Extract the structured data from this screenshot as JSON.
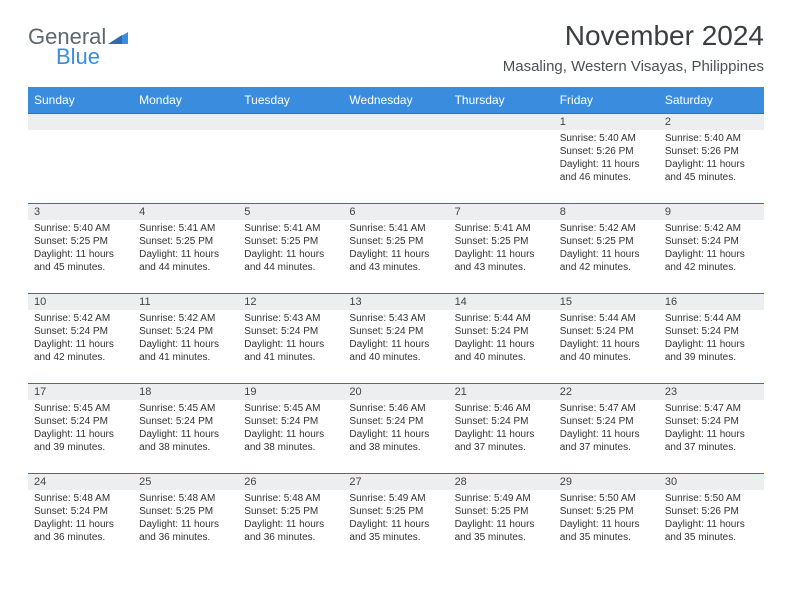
{
  "logo": {
    "general": "General",
    "blue": "Blue"
  },
  "title": "November 2024",
  "subtitle": "Masaling, Western Visayas, Philippines",
  "colors": {
    "header_bg": "#3a8dde",
    "header_text": "#ffffff",
    "daynum_bg": "#eceeef",
    "daynum_border": "#3a6ea5",
    "title_color": "#3a3f44",
    "subtitle_color": "#4a5056",
    "text_color": "#333333",
    "logo_gray": "#5c6770",
    "logo_blue": "#3a8dde",
    "background": "#ffffff"
  },
  "typography": {
    "title_fontsize": 28,
    "subtitle_fontsize": 15,
    "dow_fontsize": 12,
    "daynum_fontsize": 11,
    "info_fontsize": 10
  },
  "dow": [
    "Sunday",
    "Monday",
    "Tuesday",
    "Wednesday",
    "Thursday",
    "Friday",
    "Saturday"
  ],
  "weeks": [
    [
      {
        "day": "",
        "sunrise": "",
        "sunset": "",
        "daylight": "",
        "empty": true
      },
      {
        "day": "",
        "sunrise": "",
        "sunset": "",
        "daylight": "",
        "empty": true
      },
      {
        "day": "",
        "sunrise": "",
        "sunset": "",
        "daylight": "",
        "empty": true
      },
      {
        "day": "",
        "sunrise": "",
        "sunset": "",
        "daylight": "",
        "empty": true
      },
      {
        "day": "",
        "sunrise": "",
        "sunset": "",
        "daylight": "",
        "empty": true
      },
      {
        "day": "1",
        "sunrise": "Sunrise: 5:40 AM",
        "sunset": "Sunset: 5:26 PM",
        "daylight": "Daylight: 11 hours and 46 minutes."
      },
      {
        "day": "2",
        "sunrise": "Sunrise: 5:40 AM",
        "sunset": "Sunset: 5:26 PM",
        "daylight": "Daylight: 11 hours and 45 minutes."
      }
    ],
    [
      {
        "day": "3",
        "sunrise": "Sunrise: 5:40 AM",
        "sunset": "Sunset: 5:25 PM",
        "daylight": "Daylight: 11 hours and 45 minutes."
      },
      {
        "day": "4",
        "sunrise": "Sunrise: 5:41 AM",
        "sunset": "Sunset: 5:25 PM",
        "daylight": "Daylight: 11 hours and 44 minutes."
      },
      {
        "day": "5",
        "sunrise": "Sunrise: 5:41 AM",
        "sunset": "Sunset: 5:25 PM",
        "daylight": "Daylight: 11 hours and 44 minutes."
      },
      {
        "day": "6",
        "sunrise": "Sunrise: 5:41 AM",
        "sunset": "Sunset: 5:25 PM",
        "daylight": "Daylight: 11 hours and 43 minutes."
      },
      {
        "day": "7",
        "sunrise": "Sunrise: 5:41 AM",
        "sunset": "Sunset: 5:25 PM",
        "daylight": "Daylight: 11 hours and 43 minutes."
      },
      {
        "day": "8",
        "sunrise": "Sunrise: 5:42 AM",
        "sunset": "Sunset: 5:25 PM",
        "daylight": "Daylight: 11 hours and 42 minutes."
      },
      {
        "day": "9",
        "sunrise": "Sunrise: 5:42 AM",
        "sunset": "Sunset: 5:24 PM",
        "daylight": "Daylight: 11 hours and 42 minutes."
      }
    ],
    [
      {
        "day": "10",
        "sunrise": "Sunrise: 5:42 AM",
        "sunset": "Sunset: 5:24 PM",
        "daylight": "Daylight: 11 hours and 42 minutes."
      },
      {
        "day": "11",
        "sunrise": "Sunrise: 5:42 AM",
        "sunset": "Sunset: 5:24 PM",
        "daylight": "Daylight: 11 hours and 41 minutes."
      },
      {
        "day": "12",
        "sunrise": "Sunrise: 5:43 AM",
        "sunset": "Sunset: 5:24 PM",
        "daylight": "Daylight: 11 hours and 41 minutes."
      },
      {
        "day": "13",
        "sunrise": "Sunrise: 5:43 AM",
        "sunset": "Sunset: 5:24 PM",
        "daylight": "Daylight: 11 hours and 40 minutes."
      },
      {
        "day": "14",
        "sunrise": "Sunrise: 5:44 AM",
        "sunset": "Sunset: 5:24 PM",
        "daylight": "Daylight: 11 hours and 40 minutes."
      },
      {
        "day": "15",
        "sunrise": "Sunrise: 5:44 AM",
        "sunset": "Sunset: 5:24 PM",
        "daylight": "Daylight: 11 hours and 40 minutes."
      },
      {
        "day": "16",
        "sunrise": "Sunrise: 5:44 AM",
        "sunset": "Sunset: 5:24 PM",
        "daylight": "Daylight: 11 hours and 39 minutes."
      }
    ],
    [
      {
        "day": "17",
        "sunrise": "Sunrise: 5:45 AM",
        "sunset": "Sunset: 5:24 PM",
        "daylight": "Daylight: 11 hours and 39 minutes."
      },
      {
        "day": "18",
        "sunrise": "Sunrise: 5:45 AM",
        "sunset": "Sunset: 5:24 PM",
        "daylight": "Daylight: 11 hours and 38 minutes."
      },
      {
        "day": "19",
        "sunrise": "Sunrise: 5:45 AM",
        "sunset": "Sunset: 5:24 PM",
        "daylight": "Daylight: 11 hours and 38 minutes."
      },
      {
        "day": "20",
        "sunrise": "Sunrise: 5:46 AM",
        "sunset": "Sunset: 5:24 PM",
        "daylight": "Daylight: 11 hours and 38 minutes."
      },
      {
        "day": "21",
        "sunrise": "Sunrise: 5:46 AM",
        "sunset": "Sunset: 5:24 PM",
        "daylight": "Daylight: 11 hours and 37 minutes."
      },
      {
        "day": "22",
        "sunrise": "Sunrise: 5:47 AM",
        "sunset": "Sunset: 5:24 PM",
        "daylight": "Daylight: 11 hours and 37 minutes."
      },
      {
        "day": "23",
        "sunrise": "Sunrise: 5:47 AM",
        "sunset": "Sunset: 5:24 PM",
        "daylight": "Daylight: 11 hours and 37 minutes."
      }
    ],
    [
      {
        "day": "24",
        "sunrise": "Sunrise: 5:48 AM",
        "sunset": "Sunset: 5:24 PM",
        "daylight": "Daylight: 11 hours and 36 minutes."
      },
      {
        "day": "25",
        "sunrise": "Sunrise: 5:48 AM",
        "sunset": "Sunset: 5:25 PM",
        "daylight": "Daylight: 11 hours and 36 minutes."
      },
      {
        "day": "26",
        "sunrise": "Sunrise: 5:48 AM",
        "sunset": "Sunset: 5:25 PM",
        "daylight": "Daylight: 11 hours and 36 minutes."
      },
      {
        "day": "27",
        "sunrise": "Sunrise: 5:49 AM",
        "sunset": "Sunset: 5:25 PM",
        "daylight": "Daylight: 11 hours and 35 minutes."
      },
      {
        "day": "28",
        "sunrise": "Sunrise: 5:49 AM",
        "sunset": "Sunset: 5:25 PM",
        "daylight": "Daylight: 11 hours and 35 minutes."
      },
      {
        "day": "29",
        "sunrise": "Sunrise: 5:50 AM",
        "sunset": "Sunset: 5:25 PM",
        "daylight": "Daylight: 11 hours and 35 minutes."
      },
      {
        "day": "30",
        "sunrise": "Sunrise: 5:50 AM",
        "sunset": "Sunset: 5:26 PM",
        "daylight": "Daylight: 11 hours and 35 minutes."
      }
    ]
  ]
}
